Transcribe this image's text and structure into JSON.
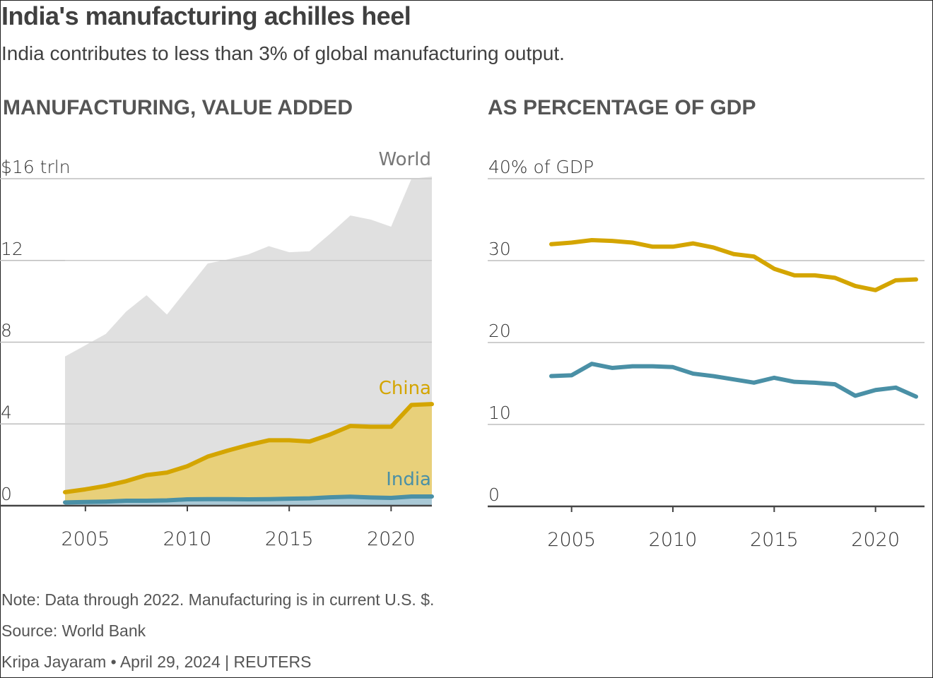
{
  "header": {
    "title": "India's manufacturing achilles heel",
    "subtitle": "India contributes to less than 3% of global manufacturing output."
  },
  "colors": {
    "world_fill": "#e0e0e0",
    "china_line": "#d4a500",
    "china_fill": "#e8d07a",
    "india_line": "#4a90a6",
    "india_fill": "#a9c9d6",
    "gridline": "#bdbdbd",
    "axis": "#444444"
  },
  "footer": {
    "note": "Note: Data through 2022. Manufacturing is in current U.S. $.",
    "source": "Source: World Bank",
    "credit": "Kripa Jayaram • April 29, 2024 | REUTERS"
  },
  "chart_data": [
    {
      "type": "area",
      "title": "MANUFACTURING, VALUE ADDED",
      "xlabel": "",
      "ylabel": "",
      "x": [
        2004,
        2005,
        2006,
        2007,
        2008,
        2009,
        2010,
        2011,
        2012,
        2013,
        2014,
        2015,
        2016,
        2017,
        2018,
        2019,
        2020,
        2021,
        2022
      ],
      "xlim": [
        2004,
        2022
      ],
      "xticks": [
        2005,
        2010,
        2015,
        2020
      ],
      "xtick_labels": [
        "2005",
        "2010",
        "2015",
        "2020"
      ],
      "ylim": [
        0,
        16
      ],
      "yticks": [
        0,
        4,
        8,
        12,
        16
      ],
      "ytick_labels": [
        "0",
        "4",
        "8",
        "12",
        "$16 trln"
      ],
      "grid": true,
      "series": [
        {
          "name": "World",
          "label": "World",
          "values": [
            7.3,
            7.85,
            8.4,
            9.5,
            10.3,
            9.35,
            10.6,
            11.85,
            12.05,
            12.3,
            12.7,
            12.4,
            12.45,
            13.3,
            14.2,
            14.0,
            13.65,
            16.0,
            16.1
          ]
        },
        {
          "name": "China",
          "label": "China",
          "values": [
            0.66,
            0.8,
            0.97,
            1.2,
            1.5,
            1.62,
            1.93,
            2.4,
            2.7,
            2.97,
            3.2,
            3.2,
            3.14,
            3.48,
            3.9,
            3.86,
            3.86,
            4.93,
            4.97
          ]
        },
        {
          "name": "India",
          "label": "India",
          "values": [
            0.16,
            0.18,
            0.2,
            0.24,
            0.24,
            0.26,
            0.31,
            0.32,
            0.32,
            0.31,
            0.32,
            0.34,
            0.36,
            0.41,
            0.44,
            0.4,
            0.38,
            0.45,
            0.45
          ]
        }
      ]
    },
    {
      "type": "line",
      "title": "AS PERCENTAGE OF GDP",
      "xlabel": "",
      "ylabel": "",
      "x": [
        2004,
        2005,
        2006,
        2007,
        2008,
        2009,
        2010,
        2011,
        2012,
        2013,
        2014,
        2015,
        2016,
        2017,
        2018,
        2019,
        2020,
        2021,
        2022
      ],
      "xlim": [
        2004,
        2022
      ],
      "xticks": [
        2005,
        2010,
        2015,
        2020
      ],
      "xtick_labels": [
        "2005",
        "2010",
        "2015",
        "2020"
      ],
      "ylim": [
        0,
        40
      ],
      "yticks": [
        0,
        10,
        20,
        30,
        40
      ],
      "ytick_labels": [
        "0",
        "10",
        "20",
        "30",
        "40% of GDP"
      ],
      "grid": true,
      "series": [
        {
          "name": "China",
          "values": [
            32.0,
            32.2,
            32.5,
            32.4,
            32.2,
            31.7,
            31.7,
            32.1,
            31.6,
            30.8,
            30.5,
            29.0,
            28.2,
            28.2,
            27.9,
            26.9,
            26.4,
            27.6,
            27.7
          ]
        },
        {
          "name": "India",
          "values": [
            15.9,
            16.0,
            17.4,
            16.9,
            17.1,
            17.1,
            17.0,
            16.2,
            15.9,
            15.5,
            15.1,
            15.7,
            15.2,
            15.1,
            14.9,
            13.5,
            14.2,
            14.5,
            13.4
          ]
        }
      ]
    }
  ]
}
